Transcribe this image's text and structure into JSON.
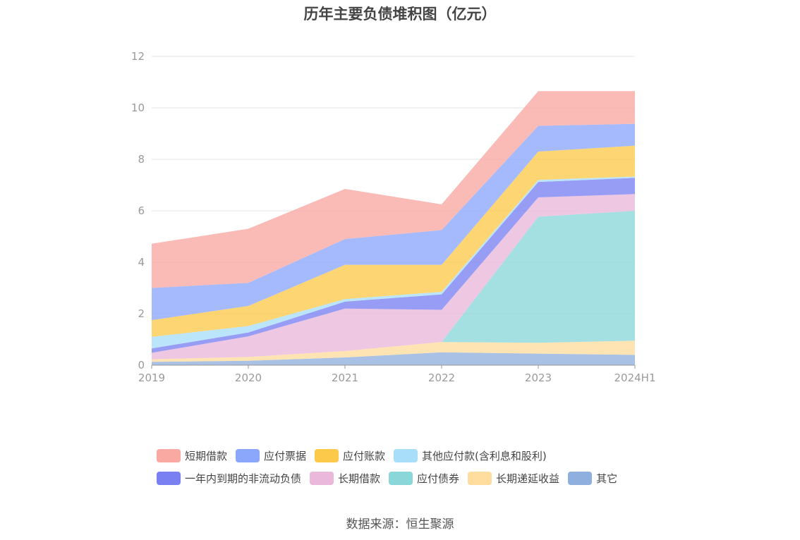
{
  "chart_data": {
    "type": "area",
    "stacked": true,
    "title": "历年主要负债堆积图（亿元）",
    "categories": [
      "2019",
      "2020",
      "2021",
      "2022",
      "2023",
      "2024H1"
    ],
    "ylim": [
      0,
      12
    ],
    "yticks": [
      "0",
      "2",
      "4",
      "6",
      "8",
      "10",
      "12"
    ],
    "grid": true,
    "legend_position": "bottom",
    "series": [
      {
        "name": "其它",
        "color": "#8fb0de",
        "values": [
          0.13,
          0.17,
          0.3,
          0.5,
          0.45,
          0.4
        ]
      },
      {
        "name": "长期递延收益",
        "color": "#fedd9e",
        "values": [
          0.1,
          0.15,
          0.25,
          0.4,
          0.42,
          0.55
        ]
      },
      {
        "name": "应付债券",
        "color": "#8ad7d9",
        "values": [
          0,
          0,
          0,
          0,
          4.9,
          5.05
        ]
      },
      {
        "name": "长期借款",
        "color": "#e9b8da",
        "values": [
          0.25,
          0.8,
          1.65,
          1.25,
          0.75,
          0.65
        ]
      },
      {
        "name": "一年内到期的非流动负债",
        "color": "#7a80f2",
        "values": [
          0.17,
          0.15,
          0.27,
          0.6,
          0.6,
          0.63
        ]
      },
      {
        "name": "其他应付款(含利息和股利)",
        "color": "#a8defa",
        "values": [
          0.45,
          0.25,
          0.1,
          0.1,
          0.08,
          0.05
        ]
      },
      {
        "name": "应付账款",
        "color": "#fdc94a",
        "values": [
          0.65,
          0.78,
          1.33,
          1.05,
          1.1,
          1.2
        ]
      },
      {
        "name": "应付票据",
        "color": "#8ba7fb",
        "values": [
          1.25,
          0.9,
          1.0,
          1.35,
          1.0,
          0.85
        ]
      },
      {
        "name": "短期借款",
        "color": "#f9a8a2",
        "values": [
          1.72,
          2.1,
          1.95,
          1.0,
          1.35,
          1.27
        ]
      }
    ]
  },
  "legend": {
    "rows": [
      [
        {
          "label": "短期借款",
          "color": "#f9a8a2"
        },
        {
          "label": "应付票据",
          "color": "#8ba7fb"
        },
        {
          "label": "应付账款",
          "color": "#fdc94a"
        },
        {
          "label": "其他应付款(含利息和股利)",
          "color": "#a8defa"
        }
      ],
      [
        {
          "label": "一年内到期的非流动负债",
          "color": "#7a80f2"
        },
        {
          "label": "长期借款",
          "color": "#e9b8da"
        },
        {
          "label": "应付债券",
          "color": "#8ad7d9"
        },
        {
          "label": "长期递延收益",
          "color": "#fedd9e"
        },
        {
          "label": "其它",
          "color": "#8fb0de"
        }
      ]
    ]
  },
  "source_note": "数据来源：恒生聚源"
}
